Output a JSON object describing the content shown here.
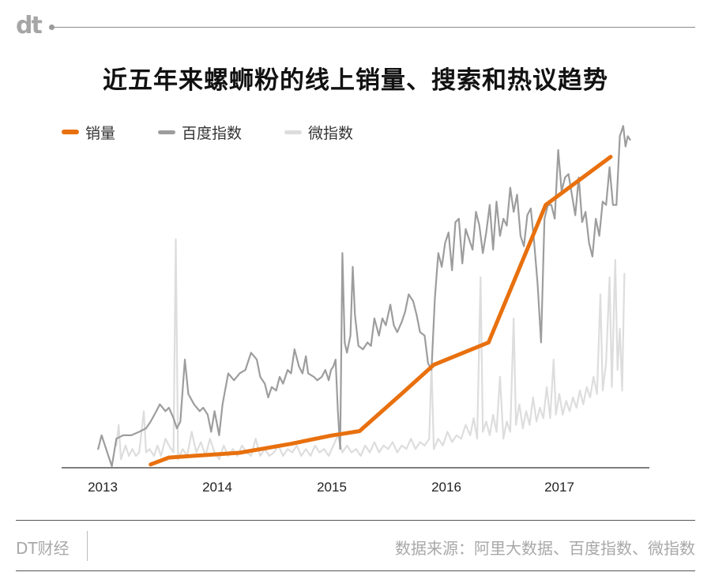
{
  "logo": "dt",
  "chart_data": {
    "type": "line",
    "title": "近五年来螺蛳粉的线上销量、搜索和热议趋势",
    "x_ticks": [
      "2013",
      "2014",
      "2015",
      "2016",
      "2017"
    ],
    "x_range": [
      2012.9,
      2017.95
    ],
    "y_range": [
      0,
      100
    ],
    "grid": false,
    "legend_position": "top-left",
    "series": [
      {
        "name": "销量",
        "color": "#E8700E",
        "style": "thick",
        "points": [
          [
            2013.42,
            0.5
          ],
          [
            2013.58,
            2.5
          ],
          [
            2014.2,
            3.9
          ],
          [
            2014.65,
            6.5
          ],
          [
            2015.0,
            8.9
          ],
          [
            2015.25,
            10.2
          ],
          [
            2015.6,
            20.5
          ],
          [
            2015.9,
            29.5
          ],
          [
            2016.38,
            36.0
          ],
          [
            2016.88,
            76.0
          ],
          [
            2017.45,
            90.0
          ]
        ]
      },
      {
        "name": "百度指数",
        "color": "#9D9D9D",
        "style": "medium",
        "points": [
          [
            2012.96,
            5
          ],
          [
            2012.99,
            9
          ],
          [
            2013.02,
            6
          ],
          [
            2013.05,
            3
          ],
          [
            2013.08,
            0
          ],
          [
            2013.12,
            8
          ],
          [
            2013.18,
            9
          ],
          [
            2013.25,
            9
          ],
          [
            2013.32,
            10
          ],
          [
            2013.38,
            11
          ],
          [
            2013.42,
            13
          ],
          [
            2013.47,
            16
          ],
          [
            2013.5,
            18
          ],
          [
            2013.55,
            16
          ],
          [
            2013.58,
            17
          ],
          [
            2013.62,
            14
          ],
          [
            2013.65,
            11
          ],
          [
            2013.68,
            13
          ],
          [
            2013.72,
            31
          ],
          [
            2013.75,
            21
          ],
          [
            2013.8,
            18
          ],
          [
            2013.85,
            16
          ],
          [
            2013.88,
            17
          ],
          [
            2013.92,
            15
          ],
          [
            2013.95,
            10
          ],
          [
            2013.98,
            16
          ],
          [
            2014.02,
            9
          ],
          [
            2014.05,
            18
          ],
          [
            2014.1,
            27
          ],
          [
            2014.15,
            25
          ],
          [
            2014.2,
            27
          ],
          [
            2014.25,
            28
          ],
          [
            2014.3,
            33
          ],
          [
            2014.35,
            31
          ],
          [
            2014.38,
            26
          ],
          [
            2014.42,
            24
          ],
          [
            2014.45,
            20
          ],
          [
            2014.48,
            23
          ],
          [
            2014.52,
            22
          ],
          [
            2014.55,
            26
          ],
          [
            2014.58,
            24
          ],
          [
            2014.62,
            28
          ],
          [
            2014.65,
            27
          ],
          [
            2014.68,
            34
          ],
          [
            2014.72,
            29
          ],
          [
            2014.75,
            27
          ],
          [
            2014.78,
            32
          ],
          [
            2014.8,
            27
          ],
          [
            2014.85,
            26
          ],
          [
            2014.88,
            25
          ],
          [
            2014.92,
            26
          ],
          [
            2014.95,
            28
          ],
          [
            2014.98,
            25
          ],
          [
            2015.0,
            28
          ],
          [
            2015.02,
            29
          ],
          [
            2015.04,
            31
          ],
          [
            2015.06,
            16
          ],
          [
            2015.08,
            5
          ],
          [
            2015.1,
            62
          ],
          [
            2015.12,
            36
          ],
          [
            2015.14,
            33
          ],
          [
            2015.17,
            38
          ],
          [
            2015.19,
            58
          ],
          [
            2015.21,
            44
          ],
          [
            2015.24,
            35
          ],
          [
            2015.28,
            34
          ],
          [
            2015.32,
            36
          ],
          [
            2015.35,
            35
          ],
          [
            2015.38,
            43
          ],
          [
            2015.42,
            38
          ],
          [
            2015.45,
            43
          ],
          [
            2015.48,
            41
          ],
          [
            2015.52,
            47
          ],
          [
            2015.55,
            41
          ],
          [
            2015.58,
            39
          ],
          [
            2015.62,
            42
          ],
          [
            2015.65,
            45
          ],
          [
            2015.68,
            50
          ],
          [
            2015.72,
            48
          ],
          [
            2015.75,
            44
          ],
          [
            2015.78,
            39
          ],
          [
            2015.82,
            38
          ],
          [
            2015.85,
            30
          ],
          [
            2015.88,
            28
          ],
          [
            2015.91,
            49
          ],
          [
            2015.94,
            62
          ],
          [
            2015.97,
            58
          ],
          [
            2016.0,
            65
          ],
          [
            2016.03,
            68
          ],
          [
            2016.06,
            57
          ],
          [
            2016.09,
            71
          ],
          [
            2016.12,
            72
          ],
          [
            2016.15,
            59
          ],
          [
            2016.18,
            69
          ],
          [
            2016.21,
            66
          ],
          [
            2016.24,
            63
          ],
          [
            2016.27,
            74
          ],
          [
            2016.3,
            70
          ],
          [
            2016.33,
            62
          ],
          [
            2016.36,
            68
          ],
          [
            2016.39,
            76
          ],
          [
            2016.42,
            63
          ],
          [
            2016.45,
            77
          ],
          [
            2016.48,
            67
          ],
          [
            2016.51,
            72
          ],
          [
            2016.54,
            70
          ],
          [
            2016.57,
            81
          ],
          [
            2016.6,
            74
          ],
          [
            2016.63,
            79
          ],
          [
            2016.66,
            67
          ],
          [
            2016.69,
            64
          ],
          [
            2016.72,
            73
          ],
          [
            2016.75,
            75
          ],
          [
            2016.78,
            65
          ],
          [
            2016.81,
            53
          ],
          [
            2016.84,
            36
          ],
          [
            2016.87,
            72
          ],
          [
            2016.9,
            76
          ],
          [
            2016.93,
            76
          ],
          [
            2016.96,
            72
          ],
          [
            2016.99,
            92
          ],
          [
            2017.02,
            80
          ],
          [
            2017.05,
            84
          ],
          [
            2017.08,
            85
          ],
          [
            2017.11,
            79
          ],
          [
            2017.14,
            73
          ],
          [
            2017.17,
            84
          ],
          [
            2017.2,
            71
          ],
          [
            2017.23,
            74
          ],
          [
            2017.26,
            65
          ],
          [
            2017.29,
            61
          ],
          [
            2017.32,
            72
          ],
          [
            2017.35,
            67
          ],
          [
            2017.38,
            77
          ],
          [
            2017.41,
            76
          ],
          [
            2017.44,
            87
          ],
          [
            2017.47,
            76
          ],
          [
            2017.5,
            76
          ],
          [
            2017.53,
            96
          ],
          [
            2017.56,
            99
          ],
          [
            2017.58,
            93
          ],
          [
            2017.6,
            96
          ],
          [
            2017.62,
            95
          ]
        ]
      },
      {
        "name": "微指数",
        "color": "#DDDDDD",
        "style": "medium",
        "points": [
          [
            2013.12,
            6
          ],
          [
            2013.14,
            12
          ],
          [
            2013.16,
            2
          ],
          [
            2013.2,
            6
          ],
          [
            2013.23,
            3
          ],
          [
            2013.26,
            5
          ],
          [
            2013.29,
            3
          ],
          [
            2013.32,
            4
          ],
          [
            2013.36,
            16
          ],
          [
            2013.38,
            4
          ],
          [
            2013.41,
            5
          ],
          [
            2013.45,
            3
          ],
          [
            2013.48,
            6
          ],
          [
            2013.51,
            3
          ],
          [
            2013.55,
            8
          ],
          [
            2013.58,
            6
          ],
          [
            2013.62,
            4
          ],
          [
            2013.64,
            66
          ],
          [
            2013.66,
            2
          ],
          [
            2013.7,
            5
          ],
          [
            2013.74,
            3
          ],
          [
            2013.78,
            10
          ],
          [
            2013.82,
            4
          ],
          [
            2013.86,
            7
          ],
          [
            2013.9,
            3
          ],
          [
            2013.94,
            8
          ],
          [
            2013.98,
            4
          ],
          [
            2014.02,
            2
          ],
          [
            2014.06,
            6
          ],
          [
            2014.1,
            3
          ],
          [
            2014.14,
            5
          ],
          [
            2014.18,
            3
          ],
          [
            2014.22,
            6
          ],
          [
            2014.26,
            4
          ],
          [
            2014.3,
            3
          ],
          [
            2014.34,
            8
          ],
          [
            2014.38,
            3
          ],
          [
            2014.42,
            5
          ],
          [
            2014.46,
            3
          ],
          [
            2014.5,
            4
          ],
          [
            2014.54,
            6
          ],
          [
            2014.58,
            3
          ],
          [
            2014.62,
            5
          ],
          [
            2014.66,
            4
          ],
          [
            2014.7,
            6
          ],
          [
            2014.74,
            3
          ],
          [
            2014.78,
            5
          ],
          [
            2014.82,
            3
          ],
          [
            2014.86,
            6
          ],
          [
            2014.9,
            4
          ],
          [
            2014.94,
            5
          ],
          [
            2014.98,
            3
          ],
          [
            2015.02,
            6
          ],
          [
            2015.06,
            9
          ],
          [
            2015.1,
            4
          ],
          [
            2015.14,
            6
          ],
          [
            2015.18,
            4
          ],
          [
            2015.22,
            5
          ],
          [
            2015.26,
            3
          ],
          [
            2015.3,
            6
          ],
          [
            2015.34,
            4
          ],
          [
            2015.38,
            7
          ],
          [
            2015.42,
            4
          ],
          [
            2015.46,
            6
          ],
          [
            2015.5,
            5
          ],
          [
            2015.54,
            7
          ],
          [
            2015.58,
            4
          ],
          [
            2015.62,
            6
          ],
          [
            2015.66,
            5
          ],
          [
            2015.7,
            8
          ],
          [
            2015.74,
            5
          ],
          [
            2015.78,
            7
          ],
          [
            2015.82,
            6
          ],
          [
            2015.86,
            8
          ],
          [
            2015.88,
            30
          ],
          [
            2015.9,
            5
          ],
          [
            2015.94,
            8
          ],
          [
            2015.98,
            6
          ],
          [
            2016.02,
            10
          ],
          [
            2016.06,
            7
          ],
          [
            2016.1,
            9
          ],
          [
            2016.14,
            8
          ],
          [
            2016.18,
            12
          ],
          [
            2016.22,
            9
          ],
          [
            2016.25,
            14
          ],
          [
            2016.28,
            8
          ],
          [
            2016.31,
            55
          ],
          [
            2016.33,
            10
          ],
          [
            2016.36,
            13
          ],
          [
            2016.39,
            9
          ],
          [
            2016.42,
            15
          ],
          [
            2016.45,
            10
          ],
          [
            2016.48,
            26
          ],
          [
            2016.51,
            8
          ],
          [
            2016.54,
            13
          ],
          [
            2016.57,
            10
          ],
          [
            2016.6,
            43
          ],
          [
            2016.62,
            12
          ],
          [
            2016.65,
            18
          ],
          [
            2016.68,
            11
          ],
          [
            2016.71,
            16
          ],
          [
            2016.74,
            12
          ],
          [
            2016.77,
            20
          ],
          [
            2016.8,
            13
          ],
          [
            2016.83,
            17
          ],
          [
            2016.86,
            14
          ],
          [
            2016.89,
            23
          ],
          [
            2016.92,
            14
          ],
          [
            2016.95,
            31
          ],
          [
            2016.97,
            15
          ],
          [
            2017.0,
            21
          ],
          [
            2017.03,
            15
          ],
          [
            2017.06,
            19
          ],
          [
            2017.09,
            16
          ],
          [
            2017.12,
            20
          ],
          [
            2017.15,
            17
          ],
          [
            2017.18,
            22
          ],
          [
            2017.21,
            18
          ],
          [
            2017.24,
            23
          ],
          [
            2017.27,
            20
          ],
          [
            2017.3,
            26
          ],
          [
            2017.33,
            21
          ],
          [
            2017.36,
            50
          ],
          [
            2017.38,
            22
          ],
          [
            2017.41,
            30
          ],
          [
            2017.44,
            55
          ],
          [
            2017.46,
            23
          ],
          [
            2017.49,
            60
          ],
          [
            2017.51,
            28
          ],
          [
            2017.53,
            40
          ],
          [
            2017.55,
            22
          ],
          [
            2017.57,
            56
          ]
        ]
      }
    ]
  },
  "footer": {
    "brand": "DT财经",
    "source": "数据来源：阿里大数据、百度指数、微指数"
  }
}
